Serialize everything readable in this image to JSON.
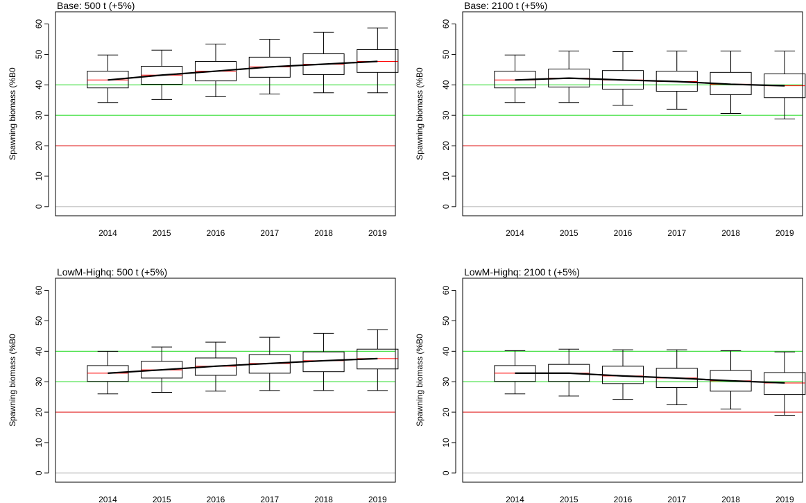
{
  "chart_data": [
    {
      "type": "box",
      "title": "Base: 500 t (+5%)",
      "ylabel": "Spawning biomass (%B0",
      "categories": [
        "2014",
        "2015",
        "2016",
        "2017",
        "2018",
        "2019"
      ],
      "whisker_low": [
        34.2,
        35.2,
        36.1,
        37.0,
        37.4,
        37.4
      ],
      "q1": [
        39.0,
        40.2,
        41.3,
        42.5,
        43.4,
        44.1
      ],
      "median": [
        41.6,
        43.2,
        44.5,
        45.9,
        46.8,
        47.7
      ],
      "q3": [
        44.5,
        46.1,
        47.7,
        49.1,
        50.2,
        51.6
      ],
      "whisker_high": [
        49.8,
        51.4,
        53.4,
        55.0,
        57.3,
        58.7
      ],
      "mean": [
        41.6,
        43.2,
        44.5,
        45.9,
        46.8,
        47.7
      ],
      "median_color": "#ff0000",
      "mean_color": "#000000",
      "hlines": [
        {
          "value": 0,
          "color": "#bebebe"
        },
        {
          "value": 20,
          "color": "#e02020"
        },
        {
          "value": 30,
          "color": "#33dd33"
        },
        {
          "value": 40,
          "color": "#33dd33"
        }
      ],
      "ylim": [
        -3,
        64
      ],
      "yticks": [
        0,
        10,
        20,
        30,
        40,
        50,
        60
      ]
    },
    {
      "type": "box",
      "title": "Base: 2100 t (+5%)",
      "ylabel": "Spawning biomass (%B0",
      "categories": [
        "2014",
        "2015",
        "2016",
        "2017",
        "2018",
        "2019"
      ],
      "whisker_low": [
        34.2,
        34.2,
        33.3,
        32.0,
        30.6,
        28.8
      ],
      "q1": [
        39.0,
        39.3,
        38.6,
        37.9,
        36.8,
        35.8
      ],
      "median": [
        41.6,
        42.2,
        41.6,
        41.1,
        40.2,
        39.7
      ],
      "q3": [
        44.5,
        45.2,
        44.7,
        44.5,
        44.1,
        43.6
      ],
      "whisker_high": [
        49.8,
        51.1,
        50.9,
        51.1,
        51.1,
        51.1
      ],
      "mean": [
        41.6,
        42.2,
        41.6,
        41.1,
        40.2,
        39.7
      ],
      "median_color": "#ff0000",
      "mean_color": "#000000",
      "hlines": [
        {
          "value": 0,
          "color": "#bebebe"
        },
        {
          "value": 20,
          "color": "#e02020"
        },
        {
          "value": 30,
          "color": "#33dd33"
        },
        {
          "value": 40,
          "color": "#33dd33"
        }
      ],
      "ylim": [
        -3,
        64
      ],
      "yticks": [
        0,
        10,
        20,
        30,
        40,
        50,
        60
      ]
    },
    {
      "type": "box",
      "title": "LowM-Highq: 500 t (+5%)",
      "ylabel": "Spawning biomass (%B0",
      "categories": [
        "2014",
        "2015",
        "2016",
        "2017",
        "2018",
        "2019"
      ],
      "whisker_low": [
        26.0,
        26.5,
        26.9,
        27.1,
        27.1,
        27.1
      ],
      "q1": [
        30.1,
        31.2,
        32.1,
        32.8,
        33.3,
        34.2
      ],
      "median": [
        32.8,
        33.9,
        35.1,
        36.0,
        36.9,
        37.6
      ],
      "q3": [
        35.3,
        36.7,
        37.8,
        38.9,
        39.8,
        40.7
      ],
      "whisker_high": [
        40.0,
        41.4,
        43.0,
        44.6,
        45.9,
        47.1
      ],
      "mean": [
        32.8,
        33.9,
        35.1,
        36.0,
        36.9,
        37.6
      ],
      "median_color": "#ff0000",
      "mean_color": "#000000",
      "hlines": [
        {
          "value": 0,
          "color": "#bebebe"
        },
        {
          "value": 20,
          "color": "#e02020"
        },
        {
          "value": 30,
          "color": "#33dd33"
        },
        {
          "value": 40,
          "color": "#33dd33"
        }
      ],
      "ylim": [
        -3,
        64
      ],
      "yticks": [
        0,
        10,
        20,
        30,
        40,
        50,
        60
      ]
    },
    {
      "type": "box",
      "title": "LowM-Highq: 2100 t (+5%)",
      "ylabel": "Spawning biomass (%B0",
      "categories": [
        "2014",
        "2015",
        "2016",
        "2017",
        "2018",
        "2019"
      ],
      "whisker_low": [
        26.0,
        25.3,
        24.2,
        22.4,
        21.0,
        19.0
      ],
      "q1": [
        30.1,
        30.1,
        29.4,
        28.1,
        26.9,
        25.8
      ],
      "median": [
        32.8,
        32.8,
        31.9,
        31.2,
        30.3,
        29.6
      ],
      "q3": [
        35.3,
        35.7,
        35.1,
        34.4,
        33.7,
        33.0
      ],
      "whisker_high": [
        40.2,
        40.7,
        40.5,
        40.5,
        40.2,
        39.8
      ],
      "mean": [
        32.8,
        32.8,
        31.9,
        31.2,
        30.3,
        29.6
      ],
      "median_color": "#ff0000",
      "mean_color": "#000000",
      "hlines": [
        {
          "value": 0,
          "color": "#bebebe"
        },
        {
          "value": 20,
          "color": "#e02020"
        },
        {
          "value": 30,
          "color": "#33dd33"
        },
        {
          "value": 40,
          "color": "#33dd33"
        }
      ],
      "ylim": [
        -3,
        64
      ],
      "yticks": [
        0,
        10,
        20,
        30,
        40,
        50,
        60
      ]
    }
  ]
}
